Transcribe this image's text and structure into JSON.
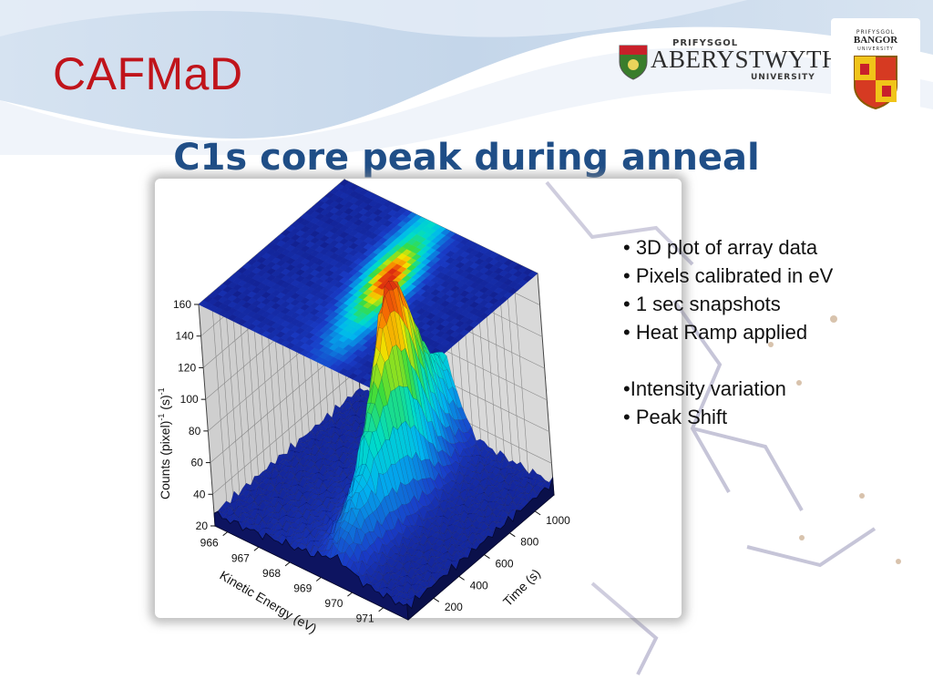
{
  "brand": "CAFMaD",
  "title": "C1s core peak during anneal",
  "logos": {
    "aberystwyth": {
      "pre": "PRIFYSGOL",
      "main": "ABERYSTWYTH",
      "sub": "UNIVERSITY"
    },
    "bangor": {
      "pre": "PRIFYSGOL",
      "name": "BANGOR",
      "sub": "UNIVERSITY"
    }
  },
  "bullets": [
    "• 3D plot of array data",
    "• Pixels calibrated in eV",
    "• 1 sec snapshots",
    "• Heat Ramp applied",
    "",
    "•Intensity variation",
    "• Peak Shift"
  ],
  "colors": {
    "brand": "#c0141b",
    "title": "#1f4e87",
    "surface_low": "#1a2a9e",
    "surface_high": "#e03010"
  },
  "chart_data": {
    "type": "surface3d",
    "z_axis": {
      "label": "Counts (pixel)^-1 (s)^-1",
      "label_base": "Counts (pixel)",
      "sup1": "-1",
      "mid": " (s)",
      "sup2": "-1",
      "ticks": [
        20,
        40,
        60,
        80,
        100,
        120,
        140,
        160
      ],
      "range": [
        20,
        160
      ]
    },
    "x_axis": {
      "label": "Kinetic Energy (eV)",
      "ticks": [
        966,
        967,
        968,
        969,
        970,
        971
      ],
      "range": [
        965.6,
        971.8
      ]
    },
    "y_axis": {
      "label": "Time (s)",
      "ticks": [
        200,
        400,
        600,
        800,
        1000
      ],
      "range": [
        0,
        1150
      ]
    },
    "surface": {
      "baseline": 28,
      "peak_max": 154,
      "peak_energy_start": 969.6,
      "peak_energy_end": 968.4,
      "peak_time_of_max": 700
    },
    "projection": "top-face heatmap of surface",
    "grid": true
  }
}
